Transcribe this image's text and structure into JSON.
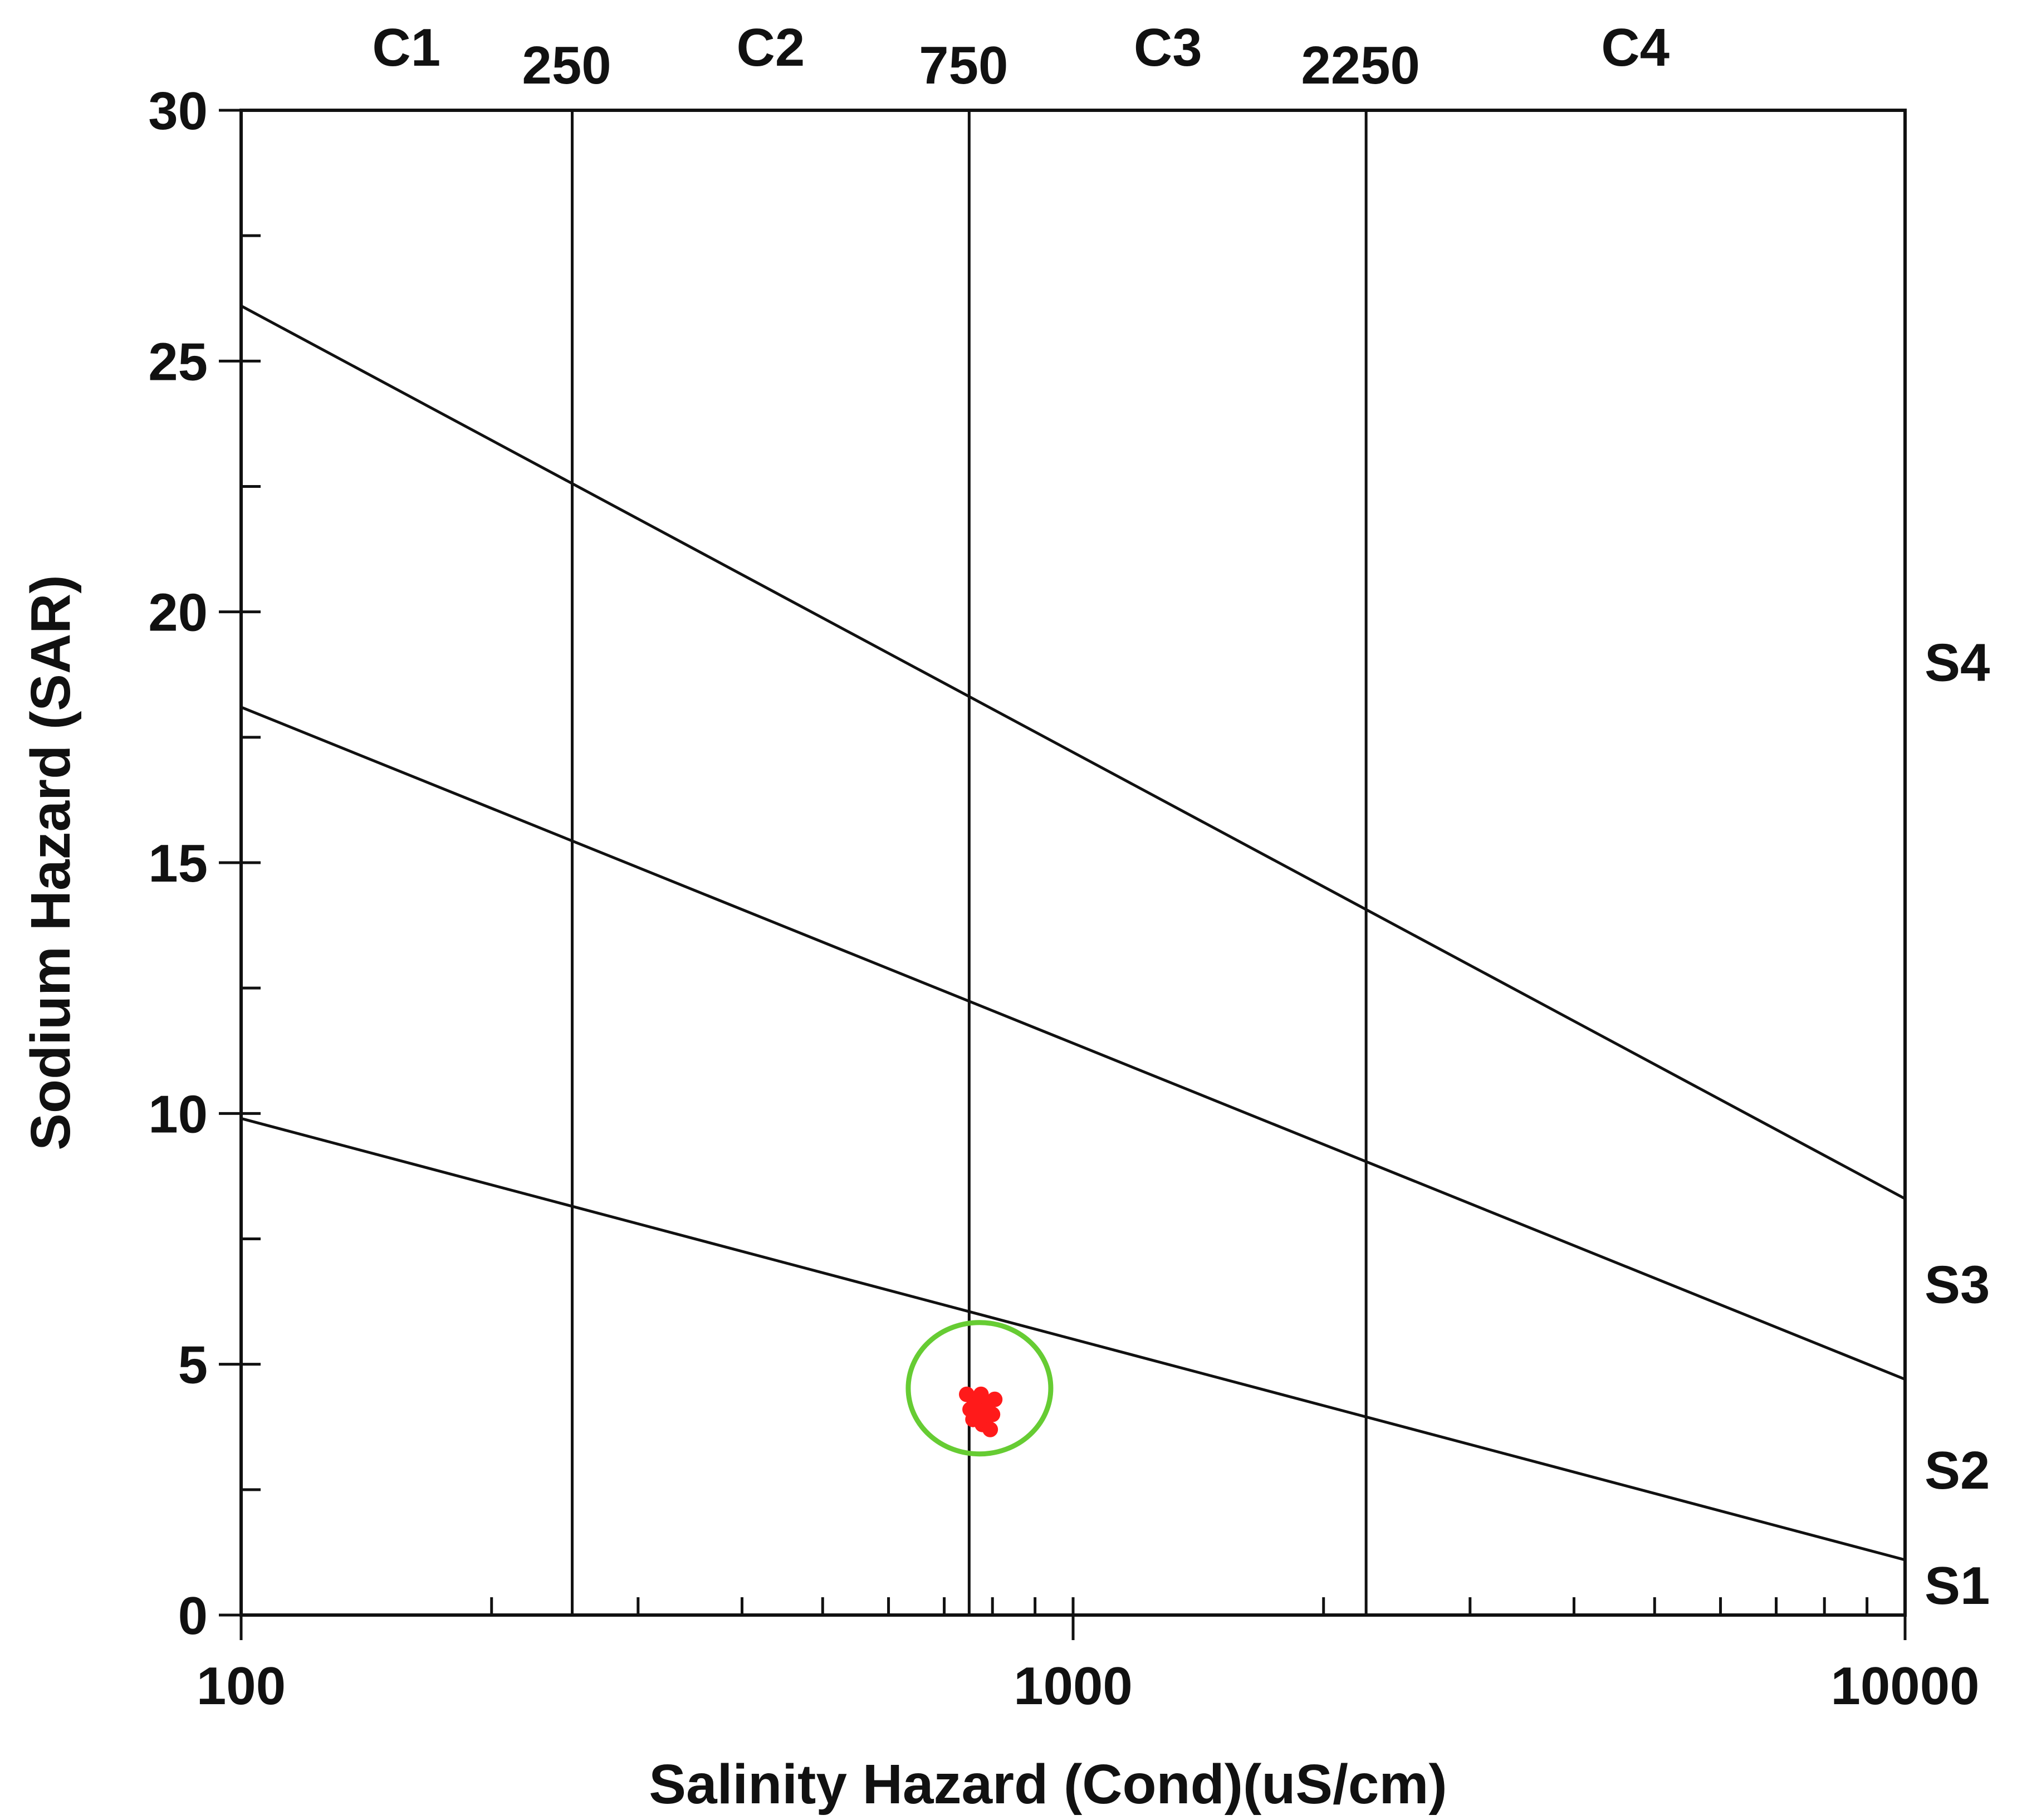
{
  "chart_data": {
    "type": "scatter",
    "title": "",
    "xlabel": "Salinity Hazard (Cond)(uS/cm)",
    "ylabel": "Sodium Hazard (SAR)",
    "x_scale": "log",
    "xlim": [
      100,
      10000
    ],
    "ylim": [
      0,
      30
    ],
    "x_ticks": [
      {
        "value": 100,
        "label": "100"
      },
      {
        "value": 1000,
        "label": "1000"
      },
      {
        "value": 10000,
        "label": "10000"
      }
    ],
    "y_ticks": [
      {
        "value": 0,
        "label": "0"
      },
      {
        "value": 5,
        "label": "5"
      },
      {
        "value": 10,
        "label": "10"
      },
      {
        "value": 15,
        "label": "15"
      },
      {
        "value": 20,
        "label": "20"
      },
      {
        "value": 25,
        "label": "25"
      },
      {
        "value": 30,
        "label": "30"
      }
    ],
    "grid": false,
    "salinity_boundaries": [
      {
        "value": 250,
        "label": "250"
      },
      {
        "value": 750,
        "label": "750"
      },
      {
        "value": 2250,
        "label": "2250"
      }
    ],
    "salinity_classes": [
      {
        "label": "C1",
        "center": 158
      },
      {
        "label": "C2",
        "center": 433
      },
      {
        "label": "C3",
        "center": 1300
      },
      {
        "label": "C4",
        "center": 4740
      }
    ],
    "sodium_boundaries": [
      {
        "x": [
          100,
          10000
        ],
        "y": [
          26.1,
          8.3
        ]
      },
      {
        "x": [
          100,
          10000
        ],
        "y": [
          18.1,
          4.7
        ]
      },
      {
        "x": [
          100,
          10000
        ],
        "y": [
          9.9,
          1.1
        ]
      }
    ],
    "sodium_classes": [
      {
        "label": "S4",
        "y": 19.0
      },
      {
        "label": "S3",
        "y": 6.6
      },
      {
        "label": "S2",
        "y": 2.9
      },
      {
        "label": "S1",
        "y": 0.6
      }
    ],
    "series": [
      {
        "color": "#ff1a1a",
        "points": [
          {
            "x": 745,
            "y": 4.4
          },
          {
            "x": 760,
            "y": 4.3
          },
          {
            "x": 775,
            "y": 4.4
          },
          {
            "x": 790,
            "y": 4.2
          },
          {
            "x": 752,
            "y": 4.1
          },
          {
            "x": 770,
            "y": 4.0
          },
          {
            "x": 785,
            "y": 3.9
          },
          {
            "x": 800,
            "y": 4.0
          },
          {
            "x": 778,
            "y": 3.8
          },
          {
            "x": 795,
            "y": 3.7
          },
          {
            "x": 765,
            "y": 4.2
          },
          {
            "x": 805,
            "y": 4.3
          },
          {
            "x": 758,
            "y": 3.9
          },
          {
            "x": 788,
            "y": 4.1
          }
        ]
      }
    ],
    "highlight": {
      "x": 760,
      "y": 4.3,
      "color": "#66cc33"
    }
  }
}
